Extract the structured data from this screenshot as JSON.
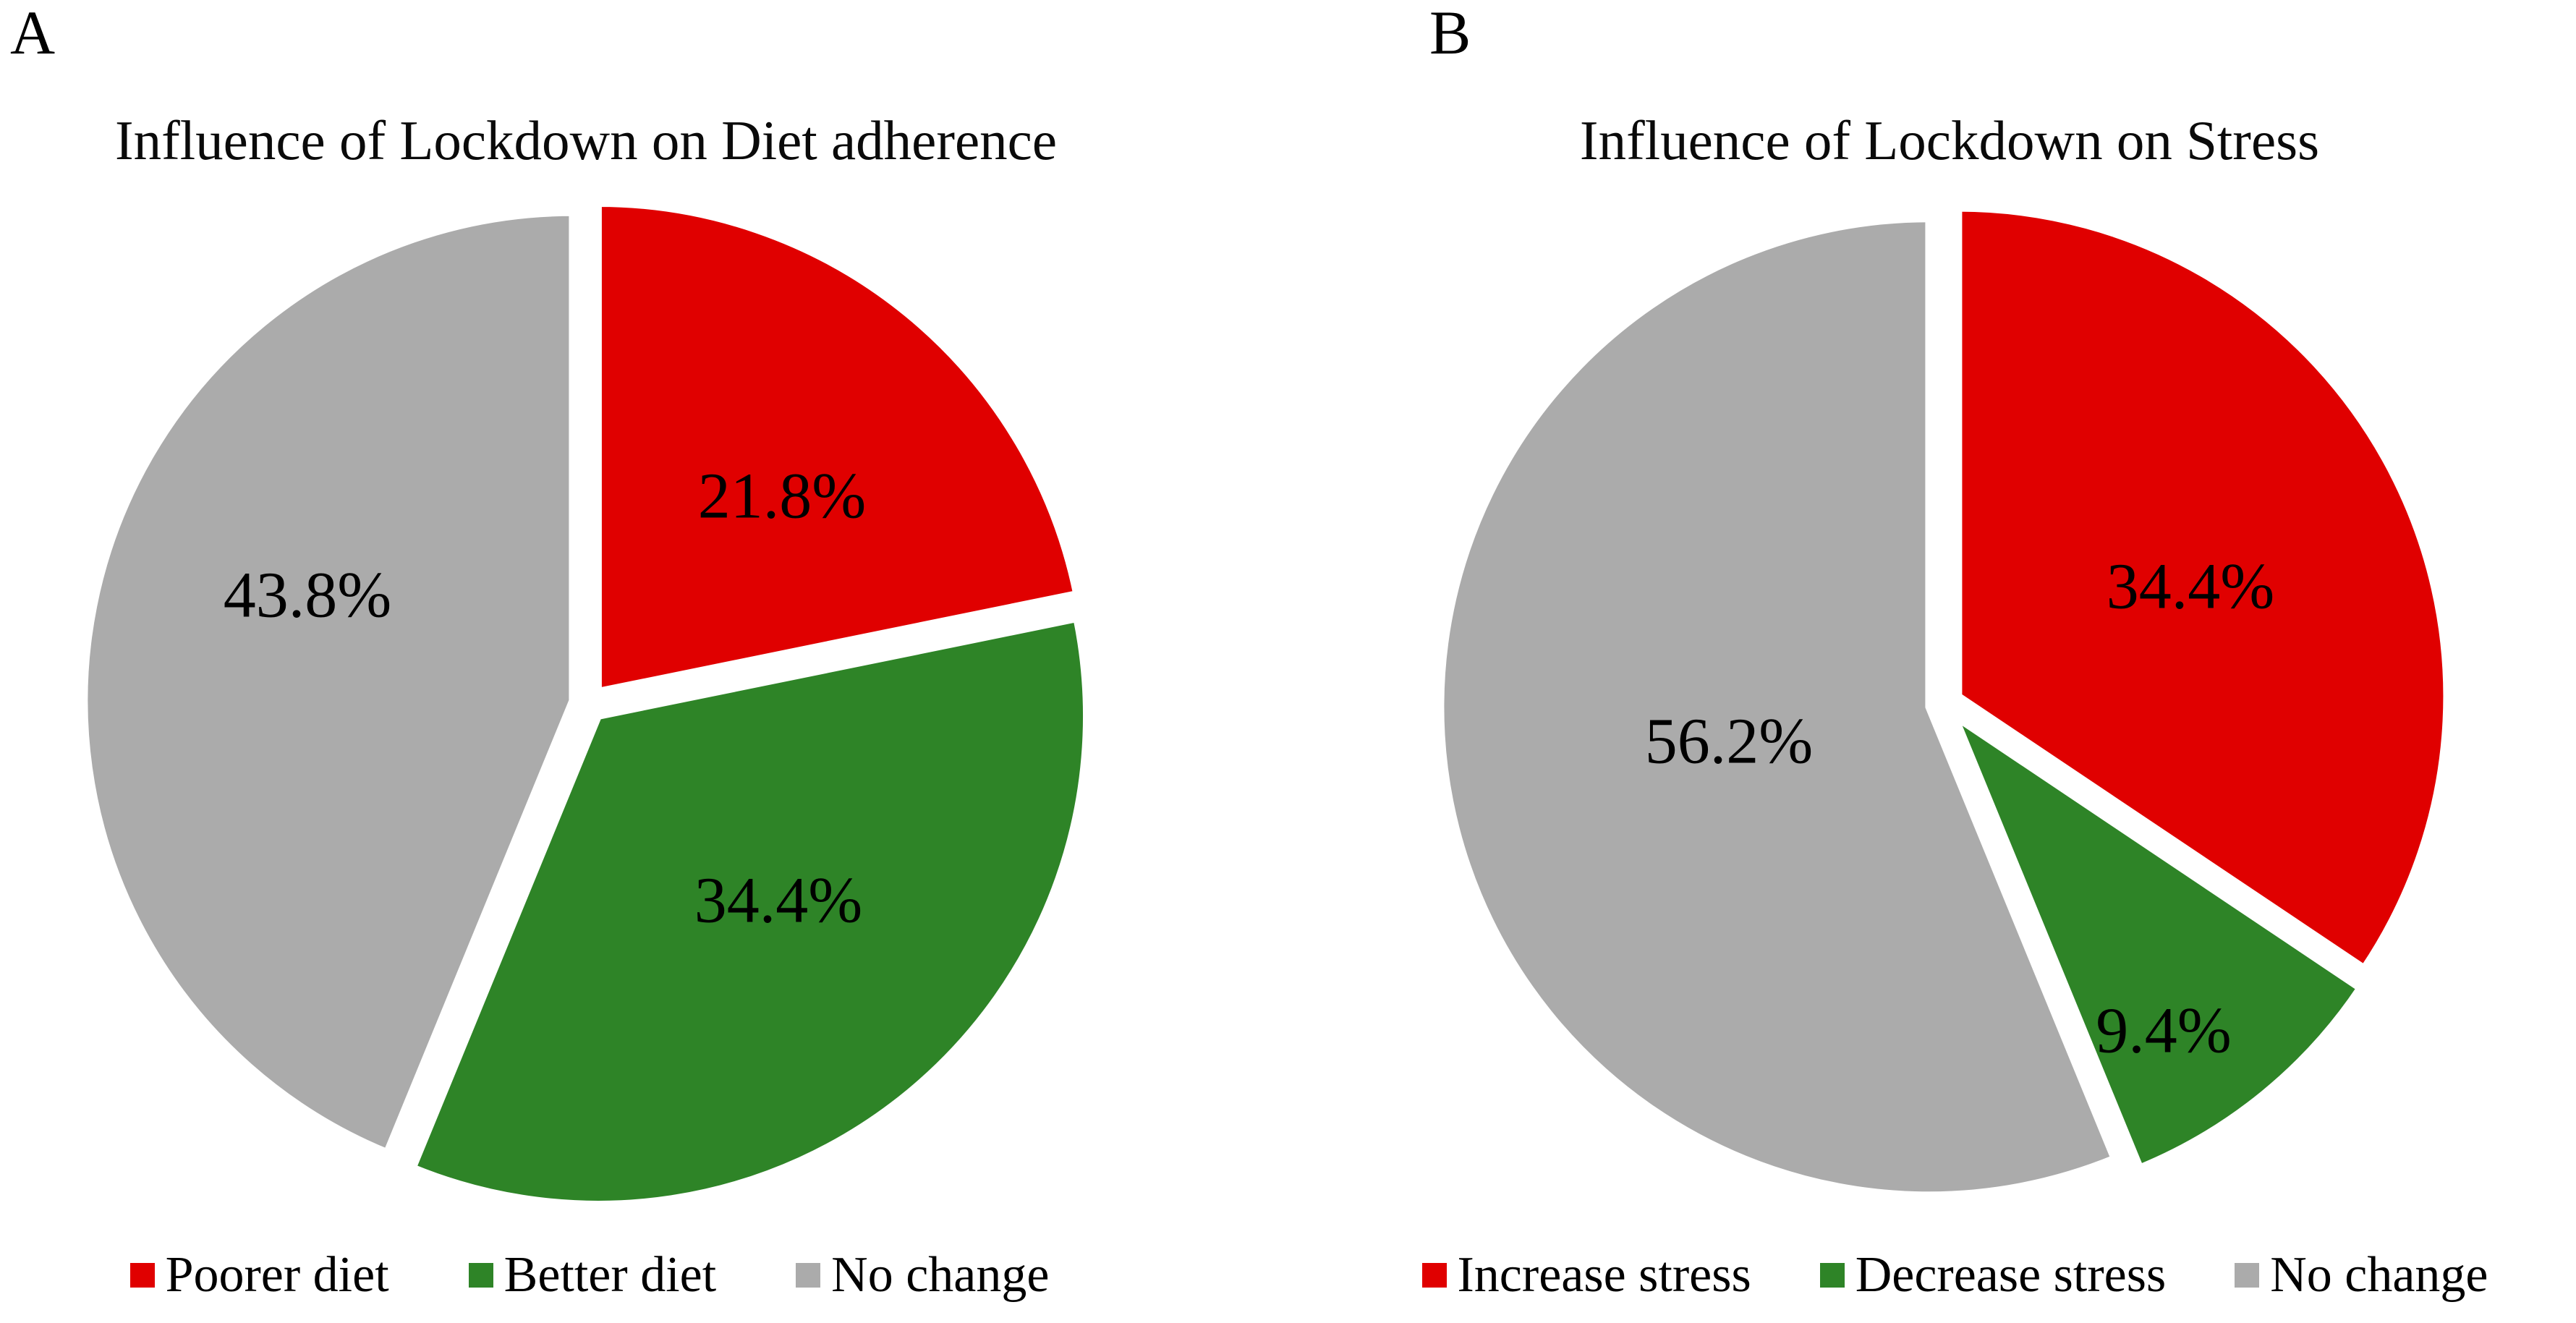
{
  "figure": {
    "background": "#ffffff",
    "panels": [
      {
        "panel_label": "A"
      },
      {
        "panel_label": "B"
      }
    ]
  },
  "chart_data": [
    {
      "type": "pie",
      "panel": "A",
      "title": "Influence of Lockdown on Diet adherence",
      "categories": [
        "Poorer diet",
        "Better diet",
        "No change"
      ],
      "values": [
        21.8,
        34.4,
        43.8
      ],
      "slice_labels": [
        "21.8%",
        "34.4%",
        "43.8%"
      ],
      "colors": [
        "#E00000",
        "#2E8427",
        "#ABABAB"
      ],
      "start_angle_deg": 0,
      "direction": "clockwise",
      "label_color": "#000000",
      "separator_color": "#FFFFFF",
      "legend_position": "bottom"
    },
    {
      "type": "pie",
      "panel": "B",
      "title": "Influence of Lockdown on Stress",
      "categories": [
        "Increase stress",
        "Decrease stress",
        "No change"
      ],
      "values": [
        34.4,
        9.4,
        56.2
      ],
      "slice_labels": [
        "34.4%",
        "9.4%",
        "56.2%"
      ],
      "colors": [
        "#E00000",
        "#2E8427",
        "#ABABAB"
      ],
      "start_angle_deg": 0,
      "direction": "clockwise",
      "label_color": "#000000",
      "separator_color": "#FFFFFF",
      "legend_position": "bottom"
    }
  ]
}
